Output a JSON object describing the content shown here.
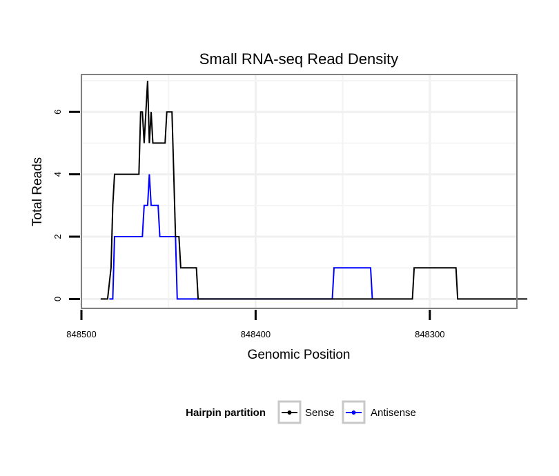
{
  "chart_data": {
    "type": "line",
    "title": "Small RNA-seq Read Density",
    "xlabel": "Genomic Position",
    "ylabel": "Total Reads",
    "x_reversed": true,
    "xlim": [
      848500,
      848250
    ],
    "ylim": [
      -0.3,
      7.2
    ],
    "x_ticks": [
      848500,
      848400,
      848300
    ],
    "x_tick_labels": [
      "848500",
      "848400",
      "848300"
    ],
    "y_ticks": [
      0,
      2,
      4,
      6
    ],
    "y_tick_labels": [
      "0",
      "2",
      "4",
      "6"
    ],
    "grid": true,
    "legend": {
      "title": "Hairpin partition",
      "position": "bottom",
      "entries": [
        {
          "label": "Sense",
          "color": "#000000"
        },
        {
          "label": "Antisense",
          "color": "#0000ff"
        }
      ]
    },
    "series": [
      {
        "name": "Sense",
        "color": "#000000",
        "points": [
          [
            848489,
            0
          ],
          [
            848485,
            0
          ],
          [
            848483,
            1
          ],
          [
            848482,
            3
          ],
          [
            848481,
            4
          ],
          [
            848467,
            4
          ],
          [
            848466,
            6
          ],
          [
            848465,
            6
          ],
          [
            848464,
            5
          ],
          [
            848463,
            6
          ],
          [
            848462,
            7
          ],
          [
            848461,
            5
          ],
          [
            848460,
            6
          ],
          [
            848459,
            5
          ],
          [
            848452,
            5
          ],
          [
            848451,
            6
          ],
          [
            848448,
            6
          ],
          [
            848447,
            4
          ],
          [
            848446,
            2
          ],
          [
            848444,
            2
          ],
          [
            848443,
            1
          ],
          [
            848434,
            1
          ],
          [
            848433,
            0
          ],
          [
            848310,
            0
          ],
          [
            848309,
            1
          ],
          [
            848285,
            1
          ],
          [
            848284,
            0
          ],
          [
            848244,
            0
          ]
        ]
      },
      {
        "name": "Antisense",
        "color": "#0000ff",
        "points": [
          [
            848484,
            0
          ],
          [
            848482,
            0
          ],
          [
            848481,
            2
          ],
          [
            848465,
            2
          ],
          [
            848464,
            3
          ],
          [
            848462,
            3
          ],
          [
            848461,
            4
          ],
          [
            848460,
            3
          ],
          [
            848456,
            3
          ],
          [
            848455,
            2
          ],
          [
            848446,
            2
          ],
          [
            848445,
            0
          ],
          [
            848356,
            0
          ],
          [
            848355,
            1
          ],
          [
            848334,
            1
          ],
          [
            848333,
            0
          ]
        ]
      }
    ]
  }
}
